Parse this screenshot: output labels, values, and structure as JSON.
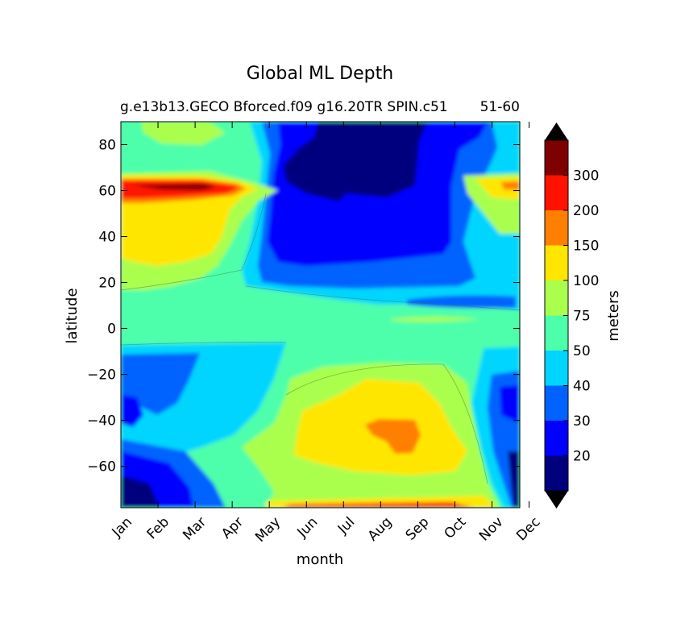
{
  "chart_data": {
    "type": "heatmap",
    "subtype": "filled-contour",
    "title": "Global ML Depth",
    "subtitle_left": "g.e13b13.GECO Bforced.f09 g16.20TR SPIN.c51",
    "subtitle_right": "51-60",
    "xlabel": "month",
    "ylabel": "latitude",
    "x_ticks": [
      "Jan",
      "Feb",
      "Mar",
      "Apr",
      "May",
      "Jun",
      "Jul",
      "Aug",
      "Sep",
      "Oct",
      "Nov",
      "Dec"
    ],
    "xlim": [
      0.5,
      11.25
    ],
    "ylim": [
      -78,
      90
    ],
    "y_ticks": [
      80,
      60,
      40,
      20,
      0,
      -20,
      -40,
      -60
    ],
    "y_tick_labels": [
      "80",
      "60",
      "40",
      "20",
      "0",
      "−20",
      "−40",
      "−60"
    ],
    "colorbar": {
      "label": "meters",
      "extend": "both",
      "levels": [
        10,
        20,
        30,
        40,
        50,
        75,
        100,
        150,
        200,
        300,
        400
      ],
      "tick_values": [
        20,
        30,
        40,
        50,
        75,
        100,
        150,
        200,
        300
      ],
      "tick_labels": [
        "20",
        "30",
        "40",
        "50",
        "75",
        "100",
        "150",
        "200",
        "300"
      ],
      "colors": [
        "#00007f",
        "#0000ff",
        "#0063ff",
        "#00d5ff",
        "#4dffaa",
        "#aaff4d",
        "#ffe600",
        "#ff7f00",
        "#ff1300",
        "#7f0000"
      ],
      "under_color": "#000000",
      "over_color": "#000000"
    }
  }
}
